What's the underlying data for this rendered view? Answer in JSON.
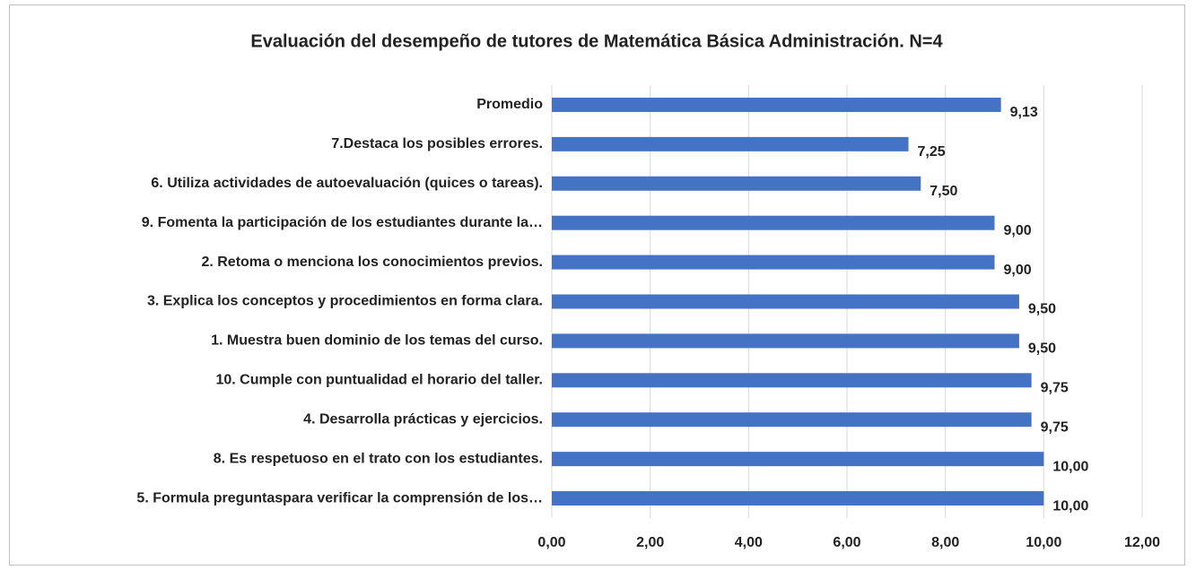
{
  "chart_data": {
    "type": "barh",
    "title": "Evaluación del desempeño de tutores de Matemática Básica Administración. N=4",
    "categories": [
      "Promedio",
      "7.Destaca los posibles errores.",
      "6. Utiliza actividades de autoevaluación (quices o tareas).",
      "9. Fomenta la participación de los estudiantes durante la…",
      "2. Retoma o menciona los conocimientos previos.",
      "3. Explica los conceptos y procedimientos en forma clara.",
      "1. Muestra buen dominio de los temas del curso.",
      "10. Cumple con puntualidad el horario del taller.",
      "4. Desarrolla prácticas y ejercicios.",
      "8. Es respetuoso en el trato con los estudiantes.",
      "5. Formula preguntaspara verificar la comprensión de los…"
    ],
    "values": [
      9.13,
      7.25,
      7.5,
      9.0,
      9.0,
      9.5,
      9.5,
      9.75,
      9.75,
      10.0,
      10.0
    ],
    "value_labels": [
      "9,13",
      "7,25",
      "7,50",
      "9,00",
      "9,00",
      "9,50",
      "9,50",
      "9,75",
      "9,75",
      "10,00",
      "10,00"
    ],
    "color": "#4472c4",
    "xlim": [
      0,
      12
    ],
    "xticks": [
      {
        "value": 0,
        "label": "0,00"
      },
      {
        "value": 2,
        "label": "2,00"
      },
      {
        "value": 4,
        "label": "4,00"
      },
      {
        "value": 6,
        "label": "6,00"
      },
      {
        "value": 8,
        "label": "8,00"
      },
      {
        "value": 10,
        "label": "10,00"
      },
      {
        "value": 12,
        "label": "12,00"
      }
    ],
    "grid": true
  }
}
